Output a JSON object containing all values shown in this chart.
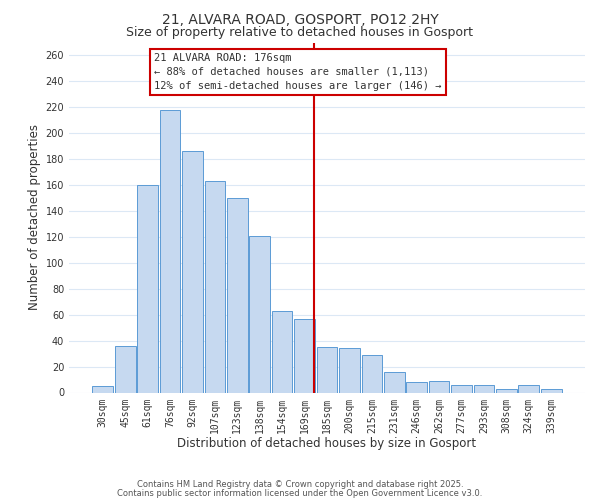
{
  "title": "21, ALVARA ROAD, GOSPORT, PO12 2HY",
  "subtitle": "Size of property relative to detached houses in Gosport",
  "xlabel": "Distribution of detached houses by size in Gosport",
  "ylabel": "Number of detached properties",
  "bar_labels": [
    "30sqm",
    "45sqm",
    "61sqm",
    "76sqm",
    "92sqm",
    "107sqm",
    "123sqm",
    "138sqm",
    "154sqm",
    "169sqm",
    "185sqm",
    "200sqm",
    "215sqm",
    "231sqm",
    "246sqm",
    "262sqm",
    "277sqm",
    "293sqm",
    "308sqm",
    "324sqm",
    "339sqm"
  ],
  "bar_values": [
    5,
    36,
    160,
    218,
    186,
    163,
    150,
    121,
    63,
    57,
    35,
    34,
    29,
    16,
    8,
    9,
    6,
    6,
    3,
    6,
    3
  ],
  "bar_color": "#c6d9f0",
  "bar_edge_color": "#5b9bd5",
  "vline_color": "#cc0000",
  "annotation_title": "21 ALVARA ROAD: 176sqm",
  "annotation_line1": "← 88% of detached houses are smaller (1,113)",
  "annotation_line2": "12% of semi-detached houses are larger (146) →",
  "annotation_box_color": "#ffffff",
  "annotation_box_edge": "#cc0000",
  "ylim": [
    0,
    270
  ],
  "yticks": [
    0,
    20,
    40,
    60,
    80,
    100,
    120,
    140,
    160,
    180,
    200,
    220,
    240,
    260
  ],
  "footer1": "Contains HM Land Registry data © Crown copyright and database right 2025.",
  "footer2": "Contains public sector information licensed under the Open Government Licence v3.0.",
  "bg_color": "#ffffff",
  "grid_color": "#dce8f5",
  "title_fontsize": 10,
  "subtitle_fontsize": 9,
  "axis_label_fontsize": 8.5,
  "tick_fontsize": 7,
  "annotation_fontsize": 7.5,
  "footer_fontsize": 6
}
